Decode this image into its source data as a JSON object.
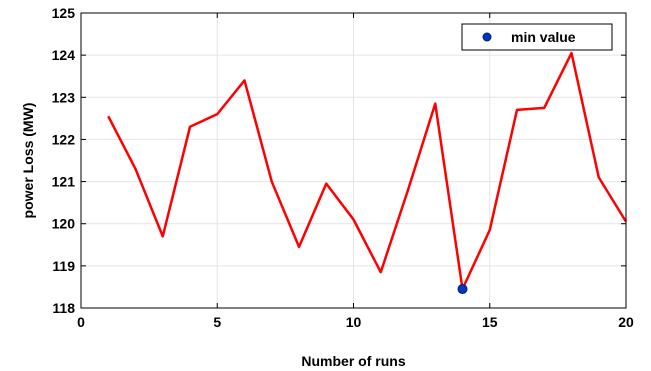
{
  "chart_data": {
    "type": "line",
    "xlabel": "Number of runs",
    "ylabel": "power Loss (MW)",
    "xlim": [
      0,
      20
    ],
    "ylim": [
      118,
      125
    ],
    "xticks": [
      "0",
      "5",
      "10",
      "15",
      "20"
    ],
    "yticks": [
      "118",
      "119",
      "120",
      "121",
      "122",
      "123",
      "124",
      "125"
    ],
    "grid": true,
    "legend_position": "top-right",
    "series": [
      {
        "kind": "line",
        "color": "#ff0000",
        "x": [
          1,
          2,
          3,
          4,
          5,
          6,
          7,
          8,
          9,
          10,
          11,
          12,
          13,
          14,
          15,
          16,
          17,
          18,
          19,
          20
        ],
        "y": [
          122.55,
          121.3,
          119.7,
          122.3,
          122.6,
          123.4,
          121.0,
          119.45,
          120.95,
          120.1,
          118.85,
          120.8,
          122.85,
          118.45,
          119.85,
          122.7,
          122.75,
          124.05,
          121.1,
          120.05
        ]
      },
      {
        "kind": "marker",
        "name": "min value",
        "color": "#0033cc",
        "x": [
          14
        ],
        "y": [
          118.45
        ]
      }
    ]
  }
}
